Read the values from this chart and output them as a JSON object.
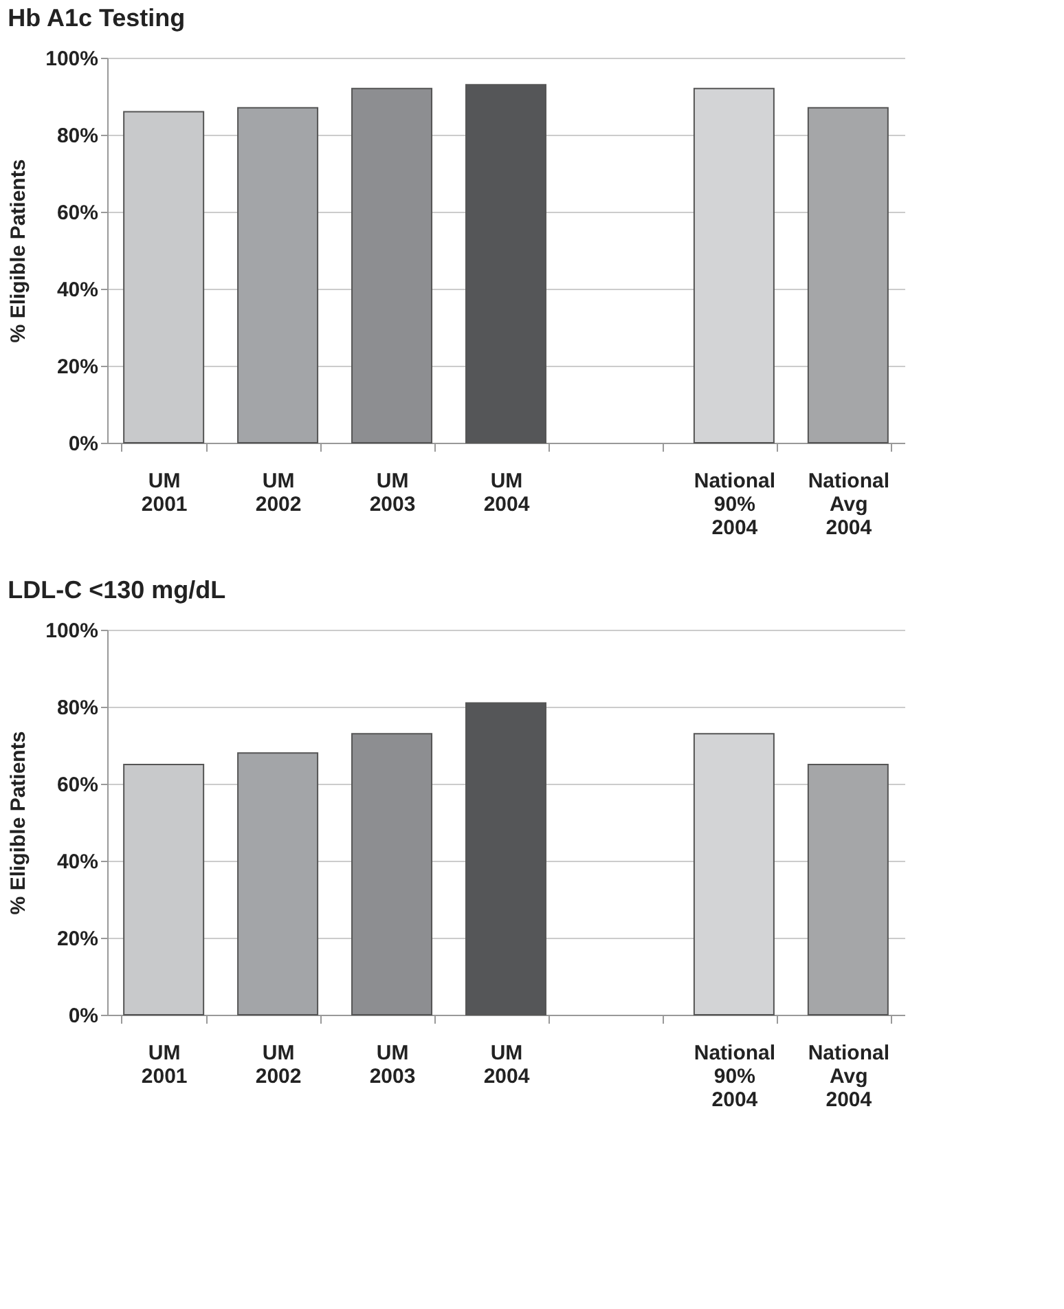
{
  "chart_data": [
    {
      "type": "bar",
      "title": "Hb A1c Testing",
      "ylabel": "% Eligible Patients",
      "categories": [
        "UM\n2001",
        "UM\n2002",
        "UM\n2003",
        "UM\n2004",
        null,
        "National\n90%\n2004",
        "National\nAvg\n2004"
      ],
      "values": [
        86,
        87,
        92,
        93,
        null,
        92,
        87
      ],
      "colors": [
        "#c8c9cb",
        "#a3a5a8",
        "#8d8e91",
        "#555658",
        "#ffffff",
        "#d3d4d6",
        "#a5a6a8"
      ],
      "ylim": [
        0,
        100
      ],
      "yticks": [
        {
          "value": 0,
          "label": "0%"
        },
        {
          "value": 20,
          "label": "20%"
        },
        {
          "value": 40,
          "label": "40%"
        },
        {
          "value": 60,
          "label": "60%"
        },
        {
          "value": 80,
          "label": "80%"
        },
        {
          "value": 100,
          "label": "100%"
        }
      ],
      "grid": "y",
      "legend": false
    },
    {
      "type": "bar",
      "title": "LDL-C <130 mg/dL",
      "ylabel": "% Eligible Patients",
      "categories": [
        "UM\n2001",
        "UM\n2002",
        "UM\n2003",
        "UM\n2004",
        null,
        "National\n90%\n2004",
        "National\nAvg\n2004"
      ],
      "values": [
        65,
        68,
        73,
        81,
        null,
        73,
        65
      ],
      "colors": [
        "#c8c9cb",
        "#a3a5a8",
        "#8d8e91",
        "#555658",
        "#ffffff",
        "#d3d4d6",
        "#a5a6a8"
      ],
      "ylim": [
        0,
        100
      ],
      "yticks": [
        {
          "value": 0,
          "label": "0%"
        },
        {
          "value": 20,
          "label": "20%"
        },
        {
          "value": 40,
          "label": "40%"
        },
        {
          "value": 60,
          "label": "60%"
        },
        {
          "value": 80,
          "label": "80%"
        },
        {
          "value": 100,
          "label": "100%"
        }
      ],
      "grid": "y",
      "legend": false
    }
  ]
}
